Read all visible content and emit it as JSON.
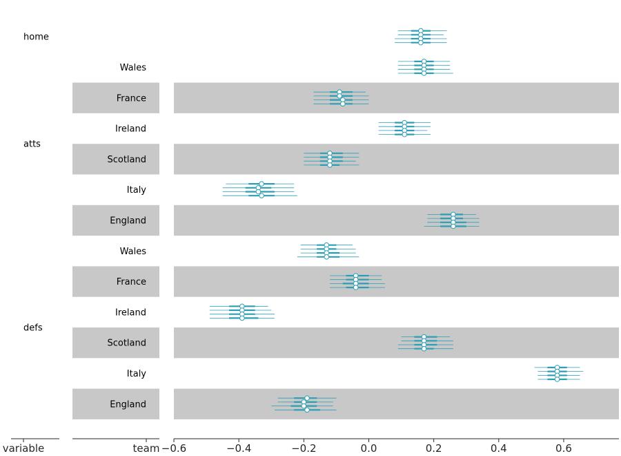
{
  "chart_data": {
    "type": "forest",
    "xlim": [
      -0.6,
      0.77
    ],
    "xticks": [
      -0.6,
      -0.4,
      -0.2,
      0.0,
      0.2,
      0.4,
      0.6
    ],
    "xtick_labels": [
      "−0.6",
      "−0.4",
      "−0.2",
      "0.0",
      "0.2",
      "0.4",
      "0.6"
    ],
    "column_labels": [
      "variable",
      "team"
    ],
    "grid": false,
    "colors": {
      "marker": "#2a9eb5",
      "band": "#c8c8c8",
      "axis": "#262626"
    },
    "variables": [
      {
        "name": "home",
        "first_row": 0,
        "last_row": 0
      },
      {
        "name": "atts",
        "first_row": 1,
        "last_row": 6
      },
      {
        "name": "defs",
        "first_row": 7,
        "last_row": 12
      }
    ],
    "rows": [
      {
        "variable": "home",
        "team": "",
        "shaded": false,
        "chains": [
          {
            "mean": 0.16,
            "hdi50": [
              0.13,
              0.19
            ],
            "hdi94": [
              0.09,
              0.24
            ]
          },
          {
            "mean": 0.16,
            "hdi50": [
              0.13,
              0.19
            ],
            "hdi94": [
              0.09,
              0.23
            ]
          },
          {
            "mean": 0.16,
            "hdi50": [
              0.13,
              0.19
            ],
            "hdi94": [
              0.08,
              0.24
            ]
          },
          {
            "mean": 0.16,
            "hdi50": [
              0.13,
              0.19
            ],
            "hdi94": [
              0.08,
              0.24
            ]
          }
        ]
      },
      {
        "variable": "atts",
        "team": "Wales",
        "shaded": false,
        "chains": [
          {
            "mean": 0.17,
            "hdi50": [
              0.14,
              0.2
            ],
            "hdi94": [
              0.09,
              0.25
            ]
          },
          {
            "mean": 0.17,
            "hdi50": [
              0.14,
              0.2
            ],
            "hdi94": [
              0.09,
              0.25
            ]
          },
          {
            "mean": 0.17,
            "hdi50": [
              0.14,
              0.2
            ],
            "hdi94": [
              0.09,
              0.25
            ]
          },
          {
            "mean": 0.17,
            "hdi50": [
              0.14,
              0.2
            ],
            "hdi94": [
              0.09,
              0.26
            ]
          }
        ]
      },
      {
        "variable": "atts",
        "team": "France",
        "shaded": true,
        "chains": [
          {
            "mean": -0.09,
            "hdi50": [
              -0.12,
              -0.05
            ],
            "hdi94": [
              -0.17,
              -0.01
            ]
          },
          {
            "mean": -0.09,
            "hdi50": [
              -0.12,
              -0.05
            ],
            "hdi94": [
              -0.17,
              0.0
            ]
          },
          {
            "mean": -0.08,
            "hdi50": [
              -0.12,
              -0.05
            ],
            "hdi94": [
              -0.17,
              0.0
            ]
          },
          {
            "mean": -0.08,
            "hdi50": [
              -0.12,
              -0.05
            ],
            "hdi94": [
              -0.17,
              0.0
            ]
          }
        ]
      },
      {
        "variable": "atts",
        "team": "Ireland",
        "shaded": false,
        "chains": [
          {
            "mean": 0.11,
            "hdi50": [
              0.08,
              0.14
            ],
            "hdi94": [
              0.03,
              0.19
            ]
          },
          {
            "mean": 0.11,
            "hdi50": [
              0.08,
              0.14
            ],
            "hdi94": [
              0.03,
              0.19
            ]
          },
          {
            "mean": 0.11,
            "hdi50": [
              0.08,
              0.14
            ],
            "hdi94": [
              0.03,
              0.18
            ]
          },
          {
            "mean": 0.11,
            "hdi50": [
              0.08,
              0.14
            ],
            "hdi94": [
              0.03,
              0.19
            ]
          }
        ]
      },
      {
        "variable": "atts",
        "team": "Scotland",
        "shaded": true,
        "chains": [
          {
            "mean": -0.12,
            "hdi50": [
              -0.15,
              -0.08
            ],
            "hdi94": [
              -0.2,
              -0.03
            ]
          },
          {
            "mean": -0.12,
            "hdi50": [
              -0.15,
              -0.08
            ],
            "hdi94": [
              -0.2,
              -0.03
            ]
          },
          {
            "mean": -0.12,
            "hdi50": [
              -0.15,
              -0.08
            ],
            "hdi94": [
              -0.2,
              -0.04
            ]
          },
          {
            "mean": -0.12,
            "hdi50": [
              -0.15,
              -0.09
            ],
            "hdi94": [
              -0.2,
              -0.03
            ]
          }
        ]
      },
      {
        "variable": "atts",
        "team": "Italy",
        "shaded": false,
        "chains": [
          {
            "mean": -0.33,
            "hdi50": [
              -0.37,
              -0.29
            ],
            "hdi94": [
              -0.44,
              -0.23
            ]
          },
          {
            "mean": -0.34,
            "hdi50": [
              -0.38,
              -0.3
            ],
            "hdi94": [
              -0.45,
              -0.23
            ]
          },
          {
            "mean": -0.34,
            "hdi50": [
              -0.38,
              -0.29
            ],
            "hdi94": [
              -0.45,
              -0.23
            ]
          },
          {
            "mean": -0.33,
            "hdi50": [
              -0.37,
              -0.29
            ],
            "hdi94": [
              -0.45,
              -0.22
            ]
          }
        ]
      },
      {
        "variable": "atts",
        "team": "England",
        "shaded": true,
        "chains": [
          {
            "mean": 0.26,
            "hdi50": [
              0.22,
              0.29
            ],
            "hdi94": [
              0.18,
              0.33
            ]
          },
          {
            "mean": 0.26,
            "hdi50": [
              0.22,
              0.29
            ],
            "hdi94": [
              0.18,
              0.34
            ]
          },
          {
            "mean": 0.26,
            "hdi50": [
              0.22,
              0.3
            ],
            "hdi94": [
              0.18,
              0.34
            ]
          },
          {
            "mean": 0.26,
            "hdi50": [
              0.22,
              0.3
            ],
            "hdi94": [
              0.17,
              0.34
            ]
          }
        ]
      },
      {
        "variable": "defs",
        "team": "Wales",
        "shaded": false,
        "chains": [
          {
            "mean": -0.13,
            "hdi50": [
              -0.16,
              -0.1
            ],
            "hdi94": [
              -0.21,
              -0.05
            ]
          },
          {
            "mean": -0.13,
            "hdi50": [
              -0.16,
              -0.1
            ],
            "hdi94": [
              -0.21,
              -0.04
            ]
          },
          {
            "mean": -0.13,
            "hdi50": [
              -0.16,
              -0.09
            ],
            "hdi94": [
              -0.21,
              -0.04
            ]
          },
          {
            "mean": -0.13,
            "hdi50": [
              -0.16,
              -0.09
            ],
            "hdi94": [
              -0.22,
              -0.03
            ]
          }
        ]
      },
      {
        "variable": "defs",
        "team": "France",
        "shaded": true,
        "chains": [
          {
            "mean": -0.04,
            "hdi50": [
              -0.07,
              0.0
            ],
            "hdi94": [
              -0.12,
              0.04
            ]
          },
          {
            "mean": -0.04,
            "hdi50": [
              -0.07,
              0.0
            ],
            "hdi94": [
              -0.12,
              0.04
            ]
          },
          {
            "mean": -0.04,
            "hdi50": [
              -0.08,
              0.0
            ],
            "hdi94": [
              -0.12,
              0.05
            ]
          },
          {
            "mean": -0.04,
            "hdi50": [
              -0.07,
              0.0
            ],
            "hdi94": [
              -0.12,
              0.05
            ]
          }
        ]
      },
      {
        "variable": "defs",
        "team": "Ireland",
        "shaded": false,
        "chains": [
          {
            "mean": -0.39,
            "hdi50": [
              -0.43,
              -0.35
            ],
            "hdi94": [
              -0.49,
              -0.31
            ]
          },
          {
            "mean": -0.39,
            "hdi50": [
              -0.43,
              -0.35
            ],
            "hdi94": [
              -0.49,
              -0.3
            ]
          },
          {
            "mean": -0.39,
            "hdi50": [
              -0.43,
              -0.35
            ],
            "hdi94": [
              -0.49,
              -0.29
            ]
          },
          {
            "mean": -0.39,
            "hdi50": [
              -0.43,
              -0.34
            ],
            "hdi94": [
              -0.49,
              -0.29
            ]
          }
        ]
      },
      {
        "variable": "defs",
        "team": "Scotland",
        "shaded": true,
        "chains": [
          {
            "mean": 0.17,
            "hdi50": [
              0.14,
              0.21
            ],
            "hdi94": [
              0.1,
              0.25
            ]
          },
          {
            "mean": 0.17,
            "hdi50": [
              0.14,
              0.21
            ],
            "hdi94": [
              0.1,
              0.26
            ]
          },
          {
            "mean": 0.17,
            "hdi50": [
              0.14,
              0.21
            ],
            "hdi94": [
              0.09,
              0.26
            ]
          },
          {
            "mean": 0.17,
            "hdi50": [
              0.14,
              0.2
            ],
            "hdi94": [
              0.09,
              0.26
            ]
          }
        ]
      },
      {
        "variable": "defs",
        "team": "Italy",
        "shaded": false,
        "chains": [
          {
            "mean": 0.58,
            "hdi50": [
              0.55,
              0.61
            ],
            "hdi94": [
              0.51,
              0.65
            ]
          },
          {
            "mean": 0.58,
            "hdi50": [
              0.55,
              0.61
            ],
            "hdi94": [
              0.52,
              0.66
            ]
          },
          {
            "mean": 0.58,
            "hdi50": [
              0.55,
              0.61
            ],
            "hdi94": [
              0.52,
              0.65
            ]
          },
          {
            "mean": 0.58,
            "hdi50": [
              0.55,
              0.61
            ],
            "hdi94": [
              0.52,
              0.65
            ]
          }
        ]
      },
      {
        "variable": "defs",
        "team": "England",
        "shaded": true,
        "chains": [
          {
            "mean": -0.19,
            "hdi50": [
              -0.23,
              -0.16
            ],
            "hdi94": [
              -0.28,
              -0.1
            ]
          },
          {
            "mean": -0.2,
            "hdi50": [
              -0.23,
              -0.16
            ],
            "hdi94": [
              -0.28,
              -0.11
            ]
          },
          {
            "mean": -0.2,
            "hdi50": [
              -0.24,
              -0.16
            ],
            "hdi94": [
              -0.3,
              -0.11
            ]
          },
          {
            "mean": -0.19,
            "hdi50": [
              -0.23,
              -0.15
            ],
            "hdi94": [
              -0.29,
              -0.1
            ]
          }
        ]
      }
    ]
  }
}
